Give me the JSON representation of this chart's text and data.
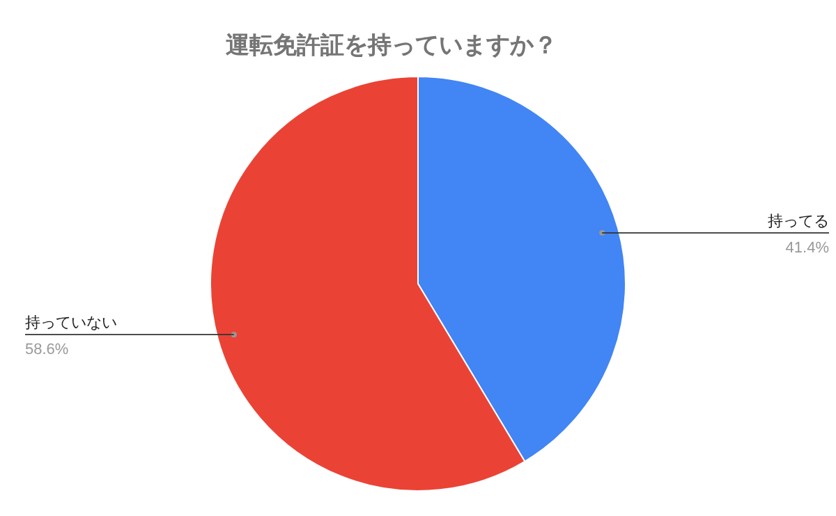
{
  "chart_data": {
    "type": "pie",
    "title": "運転免許証を持っていますか？",
    "categories": [
      "持ってる",
      "持っていない"
    ],
    "values": [
      41.4,
      58.6
    ],
    "colors": [
      "#4285f4",
      "#ea4335"
    ],
    "value_labels": [
      "41.4%",
      "58.6%"
    ]
  }
}
